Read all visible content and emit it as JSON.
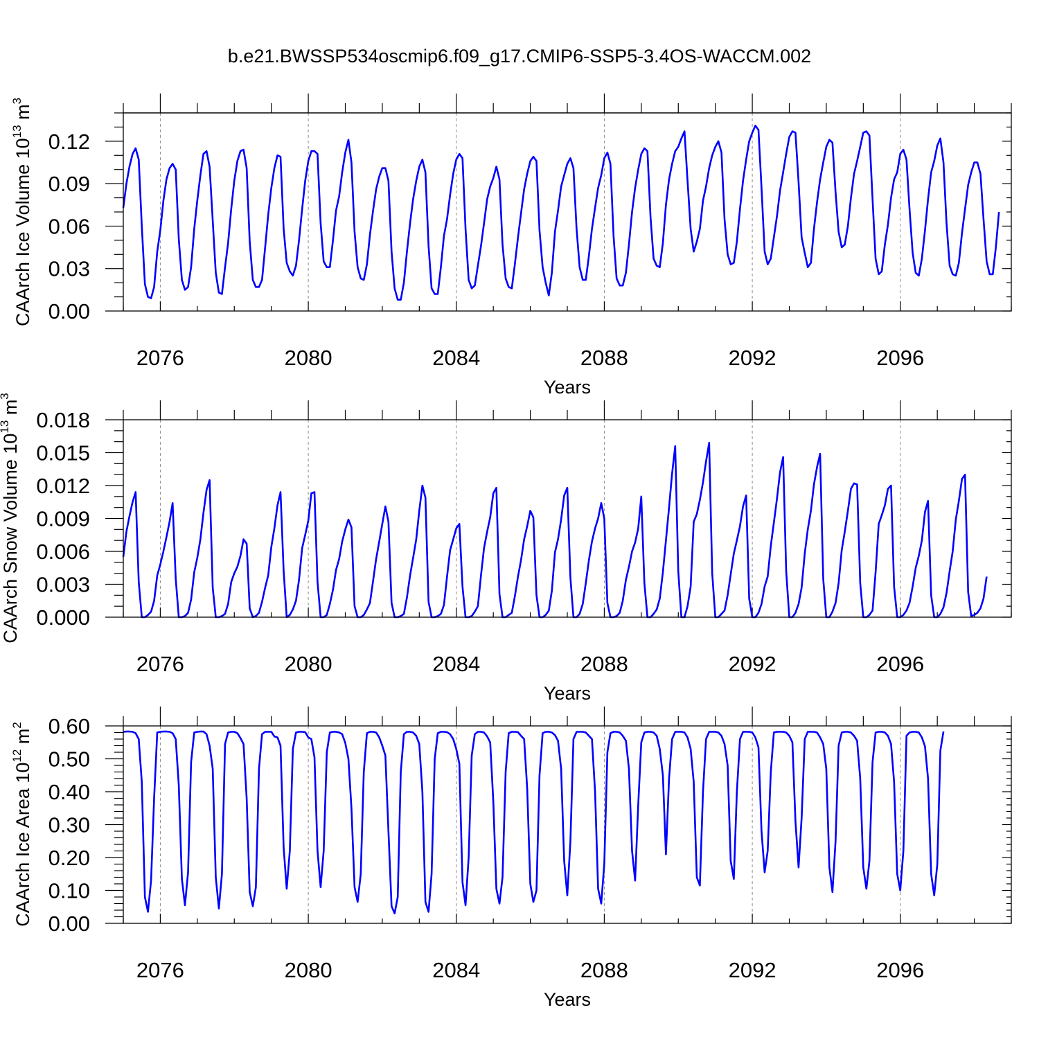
{
  "figure": {
    "title": "b.e21.BWSSP534oscmip6.f09_g17.CMIP6-SSP5-3.4OS-WACCM.002",
    "line_color": "#0000ff"
  },
  "chart_data": [
    {
      "type": "line",
      "ylabel": {
        "text": "CAArch Ice Volume 10",
        "sup": "13",
        "unit": " m",
        "unit_sup": "3"
      },
      "xlabel": "Years",
      "xlim": [
        2075.0,
        2099.0
      ],
      "x_ticks": [
        2076,
        2080,
        2084,
        2088,
        2092,
        2096
      ],
      "ylim": [
        0,
        0.14
      ],
      "y_ticks": [
        0.0,
        0.03,
        0.06,
        0.09,
        0.12
      ],
      "y_tick_labels": [
        "0.00",
        "0.03",
        "0.06",
        "0.09",
        "0.12"
      ],
      "y_minor_step": 0.01,
      "x_start": 2075.0,
      "step": 0.0833333,
      "series": [
        {
          "name": "CAArch Ice Volume",
          "values": [
            0.073,
            0.09,
            0.102,
            0.111,
            0.115,
            0.107,
            0.06,
            0.019,
            0.01,
            0.009,
            0.017,
            0.042,
            0.057,
            0.078,
            0.093,
            0.101,
            0.104,
            0.1,
            0.051,
            0.022,
            0.015,
            0.017,
            0.031,
            0.058,
            0.078,
            0.096,
            0.111,
            0.113,
            0.102,
            0.064,
            0.027,
            0.013,
            0.012,
            0.031,
            0.048,
            0.072,
            0.092,
            0.106,
            0.113,
            0.114,
            0.101,
            0.049,
            0.022,
            0.017,
            0.017,
            0.022,
            0.045,
            0.068,
            0.087,
            0.101,
            0.11,
            0.109,
            0.058,
            0.034,
            0.028,
            0.025,
            0.032,
            0.05,
            0.072,
            0.092,
            0.106,
            0.113,
            0.113,
            0.111,
            0.062,
            0.035,
            0.031,
            0.031,
            0.05,
            0.071,
            0.081,
            0.098,
            0.112,
            0.121,
            0.105,
            0.056,
            0.031,
            0.023,
            0.022,
            0.033,
            0.054,
            0.071,
            0.086,
            0.095,
            0.101,
            0.101,
            0.092,
            0.042,
            0.016,
            0.008,
            0.008,
            0.02,
            0.042,
            0.062,
            0.079,
            0.092,
            0.102,
            0.107,
            0.098,
            0.046,
            0.016,
            0.012,
            0.012,
            0.031,
            0.053,
            0.065,
            0.082,
            0.097,
            0.107,
            0.111,
            0.108,
            0.058,
            0.022,
            0.016,
            0.018,
            0.032,
            0.046,
            0.062,
            0.079,
            0.088,
            0.094,
            0.102,
            0.093,
            0.047,
            0.023,
            0.017,
            0.016,
            0.033,
            0.052,
            0.069,
            0.086,
            0.097,
            0.106,
            0.109,
            0.106,
            0.057,
            0.031,
            0.02,
            0.011,
            0.027,
            0.056,
            0.071,
            0.088,
            0.096,
            0.104,
            0.108,
            0.101,
            0.058,
            0.031,
            0.022,
            0.022,
            0.039,
            0.058,
            0.073,
            0.087,
            0.096,
            0.108,
            0.112,
            0.104,
            0.053,
            0.023,
            0.018,
            0.018,
            0.027,
            0.047,
            0.07,
            0.087,
            0.1,
            0.111,
            0.115,
            0.113,
            0.066,
            0.037,
            0.032,
            0.031,
            0.048,
            0.075,
            0.093,
            0.104,
            0.113,
            0.116,
            0.122,
            0.127,
            0.092,
            0.058,
            0.042,
            0.049,
            0.058,
            0.078,
            0.088,
            0.101,
            0.11,
            0.116,
            0.12,
            0.112,
            0.065,
            0.04,
            0.033,
            0.034,
            0.049,
            0.072,
            0.092,
            0.107,
            0.12,
            0.126,
            0.131,
            0.128,
            0.087,
            0.042,
            0.033,
            0.037,
            0.052,
            0.067,
            0.085,
            0.098,
            0.111,
            0.123,
            0.127,
            0.126,
            0.091,
            0.052,
            0.041,
            0.031,
            0.034,
            0.058,
            0.077,
            0.093,
            0.105,
            0.116,
            0.121,
            0.119,
            0.084,
            0.056,
            0.045,
            0.047,
            0.06,
            0.08,
            0.097,
            0.106,
            0.116,
            0.126,
            0.127,
            0.124,
            0.079,
            0.037,
            0.026,
            0.028,
            0.047,
            0.061,
            0.08,
            0.093,
            0.098,
            0.111,
            0.114,
            0.107,
            0.072,
            0.041,
            0.027,
            0.025,
            0.037,
            0.057,
            0.079,
            0.098,
            0.106,
            0.117,
            0.122,
            0.105,
            0.062,
            0.032,
            0.026,
            0.025,
            0.034,
            0.055,
            0.072,
            0.089,
            0.098,
            0.105,
            0.105,
            0.097,
            0.065,
            0.035,
            0.026,
            0.026,
            0.045,
            0.07
          ]
        }
      ]
    },
    {
      "type": "line",
      "ylabel": {
        "text": "CAArch Snow Volume 10",
        "sup": "13",
        "unit": " m",
        "unit_sup": "3"
      },
      "xlabel": "Years",
      "xlim": [
        2075.0,
        2099.0
      ],
      "x_ticks": [
        2076,
        2080,
        2084,
        2088,
        2092,
        2096
      ],
      "ylim": [
        0,
        0.018
      ],
      "y_ticks": [
        0.0,
        0.003,
        0.006,
        0.009,
        0.012,
        0.015,
        0.018
      ],
      "y_tick_labels": [
        "0.000",
        "0.003",
        "0.006",
        "0.009",
        "0.012",
        "0.015",
        "0.018"
      ],
      "y_minor_step": 0.001,
      "x_start": 2075.0,
      "step": 0.0833333,
      "series": [
        {
          "name": "CAArch Snow Volume",
          "values": [
            0.0055,
            0.0078,
            0.0092,
            0.0105,
            0.0114,
            0.0032,
            0.0,
            0.0,
            0.0002,
            0.0005,
            0.0015,
            0.0038,
            0.0048,
            0.006,
            0.0073,
            0.0087,
            0.0104,
            0.0035,
            0.0,
            0.0,
            0.0001,
            0.0004,
            0.0016,
            0.0041,
            0.0054,
            0.0071,
            0.0095,
            0.0116,
            0.0125,
            0.0027,
            0.0,
            0.0,
            0.0001,
            0.0003,
            0.0012,
            0.0032,
            0.004,
            0.0046,
            0.0056,
            0.0071,
            0.0067,
            0.0008,
            0.0,
            0.0001,
            0.0004,
            0.0014,
            0.0027,
            0.0038,
            0.0064,
            0.0081,
            0.0102,
            0.0114,
            0.0042,
            0.0,
            0.0002,
            0.0007,
            0.0015,
            0.0034,
            0.0063,
            0.0075,
            0.0088,
            0.0113,
            0.0114,
            0.0032,
            0.0,
            0.0,
            0.0002,
            0.0012,
            0.0025,
            0.0043,
            0.0053,
            0.0069,
            0.008,
            0.0089,
            0.0082,
            0.001,
            0.0,
            0.0,
            0.0002,
            0.0007,
            0.0013,
            0.0033,
            0.0053,
            0.0069,
            0.0085,
            0.0101,
            0.0087,
            0.0013,
            0.0,
            0.0,
            0.0001,
            0.0003,
            0.0018,
            0.0038,
            0.0054,
            0.0071,
            0.0097,
            0.012,
            0.0109,
            0.0014,
            0.0,
            0.0,
            0.0001,
            0.0003,
            0.0011,
            0.0037,
            0.0061,
            0.0071,
            0.0081,
            0.0085,
            0.0028,
            0.0,
            0.0,
            0.0001,
            0.0005,
            0.001,
            0.0038,
            0.0063,
            0.0078,
            0.0091,
            0.0113,
            0.0118,
            0.0021,
            0.0,
            0.0,
            0.0002,
            0.0004,
            0.0019,
            0.0037,
            0.0052,
            0.0071,
            0.0083,
            0.0097,
            0.0091,
            0.002,
            0.0,
            0.0,
            0.0002,
            0.0006,
            0.0024,
            0.0059,
            0.0071,
            0.0089,
            0.0111,
            0.0118,
            0.0036,
            0.0,
            0.0,
            0.0003,
            0.0012,
            0.0031,
            0.0052,
            0.0069,
            0.0081,
            0.009,
            0.0104,
            0.009,
            0.0013,
            0.0,
            0.0,
            0.0001,
            0.0004,
            0.0015,
            0.0034,
            0.0046,
            0.006,
            0.0068,
            0.0081,
            0.011,
            0.0031,
            0.0,
            0.0,
            0.0003,
            0.0007,
            0.0017,
            0.0041,
            0.007,
            0.01,
            0.0131,
            0.0156,
            0.0042,
            0.0,
            0.0,
            0.001,
            0.0028,
            0.0087,
            0.0094,
            0.0107,
            0.0123,
            0.0142,
            0.0159,
            0.004,
            0.0,
            0.0,
            0.0003,
            0.0006,
            0.002,
            0.0039,
            0.0058,
            0.007,
            0.0083,
            0.0101,
            0.0111,
            0.0017,
            0.0,
            0.0,
            0.0004,
            0.0012,
            0.0028,
            0.0037,
            0.0065,
            0.0086,
            0.0108,
            0.0132,
            0.0146,
            0.0042,
            0.0,
            0.0,
            0.0004,
            0.0012,
            0.0027,
            0.0058,
            0.008,
            0.0097,
            0.0121,
            0.0137,
            0.0149,
            0.0035,
            0.0,
            0.0,
            0.0005,
            0.0013,
            0.0031,
            0.0061,
            0.0078,
            0.0097,
            0.0117,
            0.0122,
            0.0121,
            0.0031,
            0.0,
            0.0,
            0.0002,
            0.0006,
            0.0041,
            0.0085,
            0.0093,
            0.0102,
            0.0117,
            0.012,
            0.0028,
            0.0,
            0.0,
            0.0002,
            0.0006,
            0.0013,
            0.0028,
            0.0045,
            0.0056,
            0.007,
            0.0096,
            0.0106,
            0.002,
            0.0,
            0.0,
            0.0003,
            0.0009,
            0.0022,
            0.0042,
            0.006,
            0.0089,
            0.0106,
            0.0126,
            0.013,
            0.0023,
            0.0001,
            0.0002,
            0.0004,
            0.0008,
            0.0017,
            0.0037
          ]
        }
      ]
    },
    {
      "type": "line",
      "ylabel": {
        "text": "CAArch Ice Area 10",
        "sup": "12",
        "unit": " m",
        "unit_sup": "2"
      },
      "xlabel": "Years",
      "xlim": [
        2075.0,
        2099.0
      ],
      "x_ticks": [
        2076,
        2080,
        2084,
        2088,
        2092,
        2096
      ],
      "ylim": [
        0,
        0.6
      ],
      "y_ticks": [
        0.0,
        0.1,
        0.2,
        0.3,
        0.4,
        0.5,
        0.6
      ],
      "y_tick_labels": [
        "0.00",
        "0.10",
        "0.20",
        "0.30",
        "0.40",
        "0.50",
        "0.60"
      ],
      "y_minor_step": 0.02,
      "x_start": 2075.0,
      "step": 0.0833333,
      "series": [
        {
          "name": "CAArch Ice Area",
          "values": [
            0.582,
            0.583,
            0.583,
            0.582,
            0.578,
            0.56,
            0.43,
            0.08,
            0.035,
            0.13,
            0.38,
            0.58,
            0.582,
            0.583,
            0.583,
            0.582,
            0.578,
            0.56,
            0.42,
            0.135,
            0.055,
            0.155,
            0.49,
            0.58,
            0.582,
            0.583,
            0.583,
            0.575,
            0.54,
            0.47,
            0.14,
            0.045,
            0.15,
            0.545,
            0.58,
            0.582,
            0.582,
            0.578,
            0.563,
            0.545,
            0.38,
            0.095,
            0.052,
            0.11,
            0.47,
            0.575,
            0.582,
            0.582,
            0.582,
            0.568,
            0.565,
            0.54,
            0.23,
            0.105,
            0.22,
            0.53,
            0.58,
            0.582,
            0.582,
            0.581,
            0.565,
            0.56,
            0.505,
            0.22,
            0.11,
            0.22,
            0.52,
            0.58,
            0.582,
            0.582,
            0.58,
            0.575,
            0.548,
            0.5,
            0.35,
            0.11,
            0.065,
            0.15,
            0.46,
            0.578,
            0.582,
            0.582,
            0.58,
            0.565,
            0.54,
            0.51,
            0.28,
            0.052,
            0.03,
            0.08,
            0.46,
            0.575,
            0.582,
            0.582,
            0.58,
            0.57,
            0.545,
            0.4,
            0.065,
            0.035,
            0.15,
            0.5,
            0.578,
            0.582,
            0.582,
            0.581,
            0.575,
            0.56,
            0.53,
            0.485,
            0.125,
            0.055,
            0.2,
            0.51,
            0.575,
            0.582,
            0.582,
            0.58,
            0.568,
            0.55,
            0.37,
            0.105,
            0.06,
            0.14,
            0.46,
            0.578,
            0.582,
            0.582,
            0.581,
            0.57,
            0.56,
            0.41,
            0.12,
            0.065,
            0.1,
            0.45,
            0.578,
            0.582,
            0.582,
            0.58,
            0.572,
            0.555,
            0.47,
            0.19,
            0.085,
            0.25,
            0.56,
            0.582,
            0.582,
            0.582,
            0.58,
            0.57,
            0.56,
            0.4,
            0.105,
            0.06,
            0.18,
            0.52,
            0.578,
            0.582,
            0.582,
            0.58,
            0.57,
            0.555,
            0.47,
            0.22,
            0.13,
            0.36,
            0.55,
            0.58,
            0.582,
            0.582,
            0.58,
            0.57,
            0.53,
            0.45,
            0.21,
            0.44,
            0.56,
            0.582,
            0.582,
            0.582,
            0.58,
            0.565,
            0.53,
            0.43,
            0.14,
            0.115,
            0.4,
            0.56,
            0.582,
            0.582,
            0.582,
            0.58,
            0.57,
            0.545,
            0.48,
            0.19,
            0.135,
            0.4,
            0.56,
            0.582,
            0.582,
            0.582,
            0.58,
            0.565,
            0.535,
            0.28,
            0.155,
            0.22,
            0.46,
            0.58,
            0.582,
            0.582,
            0.582,
            0.58,
            0.57,
            0.55,
            0.31,
            0.17,
            0.32,
            0.56,
            0.582,
            0.582,
            0.582,
            0.58,
            0.565,
            0.545,
            0.47,
            0.17,
            0.095,
            0.25,
            0.54,
            0.58,
            0.582,
            0.582,
            0.58,
            0.57,
            0.555,
            0.44,
            0.17,
            0.105,
            0.19,
            0.49,
            0.58,
            0.582,
            0.582,
            0.58,
            0.57,
            0.545,
            0.43,
            0.15,
            0.1,
            0.22,
            0.57,
            0.58,
            0.582,
            0.582,
            0.58,
            0.565,
            0.538,
            0.44,
            0.15,
            0.085,
            0.18,
            0.525,
            0.583
          ]
        }
      ]
    }
  ]
}
